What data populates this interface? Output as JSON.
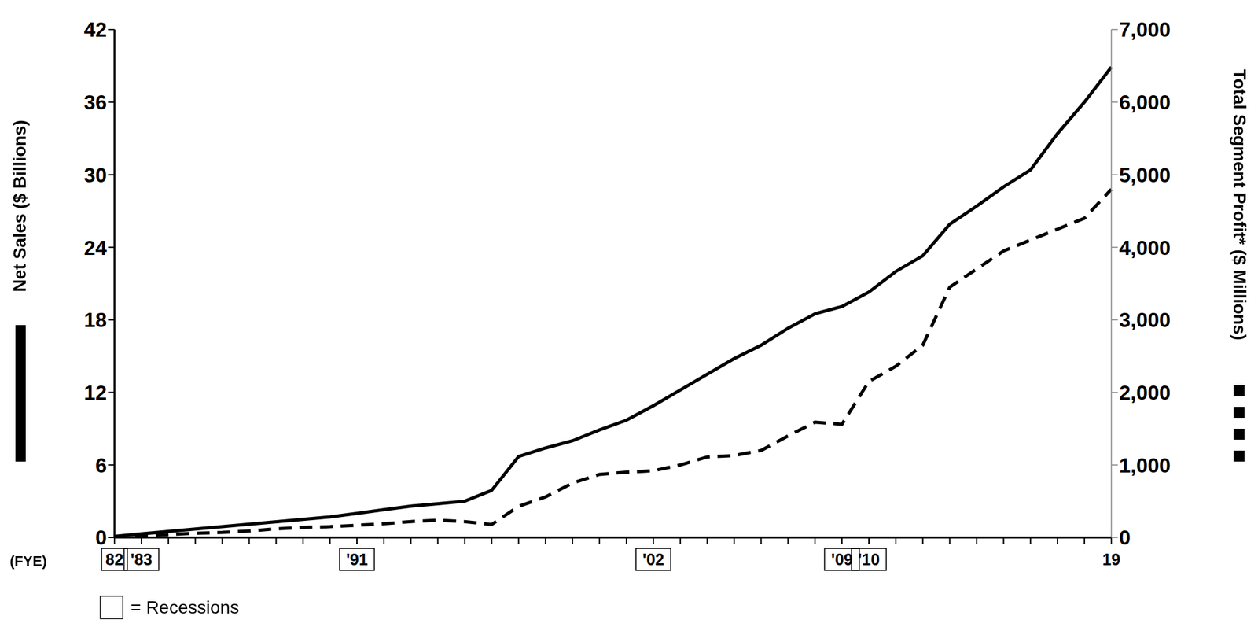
{
  "chart_data": {
    "type": "line",
    "x_label": "(FYE)",
    "categories": [
      "82",
      "'83",
      null,
      null,
      null,
      null,
      null,
      null,
      null,
      "'91",
      null,
      null,
      null,
      null,
      null,
      null,
      null,
      null,
      null,
      null,
      "'02",
      null,
      null,
      null,
      null,
      null,
      null,
      "'09",
      "'10",
      null,
      null,
      null,
      null,
      null,
      null,
      null,
      null,
      "19"
    ],
    "recessions": [
      "82",
      "'83",
      "'91",
      "'02",
      "'09",
      "'10"
    ],
    "recession_label": "= Recessions",
    "series": [
      {
        "name": "Net Sales ($ Billions)",
        "color": "#000000",
        "line_style": "solid",
        "values": [
          0.1,
          0.3,
          0.5,
          0.7,
          0.9,
          1.1,
          1.3,
          1.5,
          1.7,
          2.0,
          2.3,
          2.6,
          2.8,
          3.0,
          3.9,
          6.7,
          7.4,
          8.0,
          8.9,
          9.7,
          10.9,
          12.2,
          13.5,
          14.8,
          15.9,
          17.3,
          18.5,
          19.1,
          20.3,
          22.0,
          23.3,
          25.9,
          27.4,
          29.0,
          30.4,
          33.4,
          36.0,
          38.9
        ]
      },
      {
        "name": "Total Segment Profit* ($ Millions)",
        "color": "#000000",
        "line_style": "dashed",
        "axis": "y2",
        "values": [
          10,
          20,
          40,
          60,
          70,
          90,
          120,
          140,
          150,
          170,
          190,
          220,
          240,
          220,
          180,
          430,
          560,
          750,
          870,
          900,
          920,
          1000,
          1110,
          1130,
          1200,
          1400,
          1590,
          1560,
          2150,
          2360,
          2650,
          3450,
          3700,
          3950,
          4100,
          4250,
          4400,
          4800
        ]
      }
    ],
    "ylim": [
      0,
      42
    ],
    "yticks": [
      0,
      6,
      12,
      18,
      24,
      30,
      36,
      42
    ],
    "y2lim": [
      0,
      7000
    ],
    "y2ticks": [
      0,
      {
        "value": 1000,
        "label": "1,000"
      },
      {
        "value": 2000,
        "label": "2,000"
      },
      {
        "value": 3000,
        "label": "3,000"
      },
      {
        "value": 4000,
        "label": "4,000"
      },
      {
        "value": 5000,
        "label": "5,000"
      },
      {
        "value": 6000,
        "label": "6,000"
      },
      {
        "value": 7000,
        "label": "7,000"
      }
    ],
    "grid": false
  }
}
